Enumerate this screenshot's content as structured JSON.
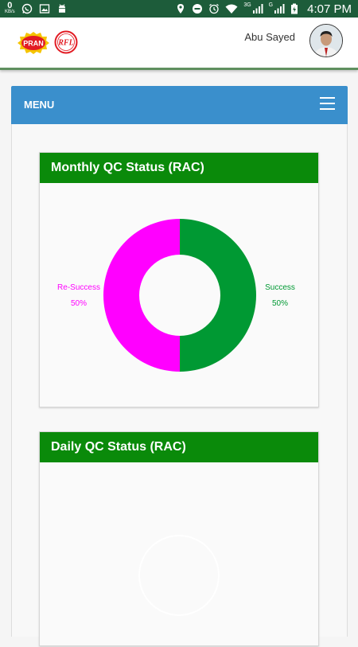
{
  "status_bar": {
    "data_rate": "0",
    "data_unit": "KB/s",
    "net_3g": "3G",
    "net_g": "G",
    "time": "4:07 PM"
  },
  "header": {
    "logo_text": "PRAN",
    "logo_rfl_text": "RFL",
    "user_name": "Abu Sayed"
  },
  "menu": {
    "label": "MENU"
  },
  "monthly_card": {
    "title": "Monthly QC Status (RAC)"
  },
  "daily_card": {
    "title": "Daily QC Status (RAC)"
  },
  "colors": {
    "success": "#009933",
    "re_success": "#ff00ff",
    "header_green": "#0a8a0a",
    "menu_blue": "#3a8fcc"
  },
  "chart_data": {
    "type": "pie",
    "variant": "donut",
    "title": "",
    "slices": [
      {
        "name": "Success",
        "value": 50,
        "label": "50%",
        "color": "#009933"
      },
      {
        "name": "Re-Success",
        "value": 50,
        "label": "50%",
        "color": "#ff00ff"
      }
    ]
  }
}
